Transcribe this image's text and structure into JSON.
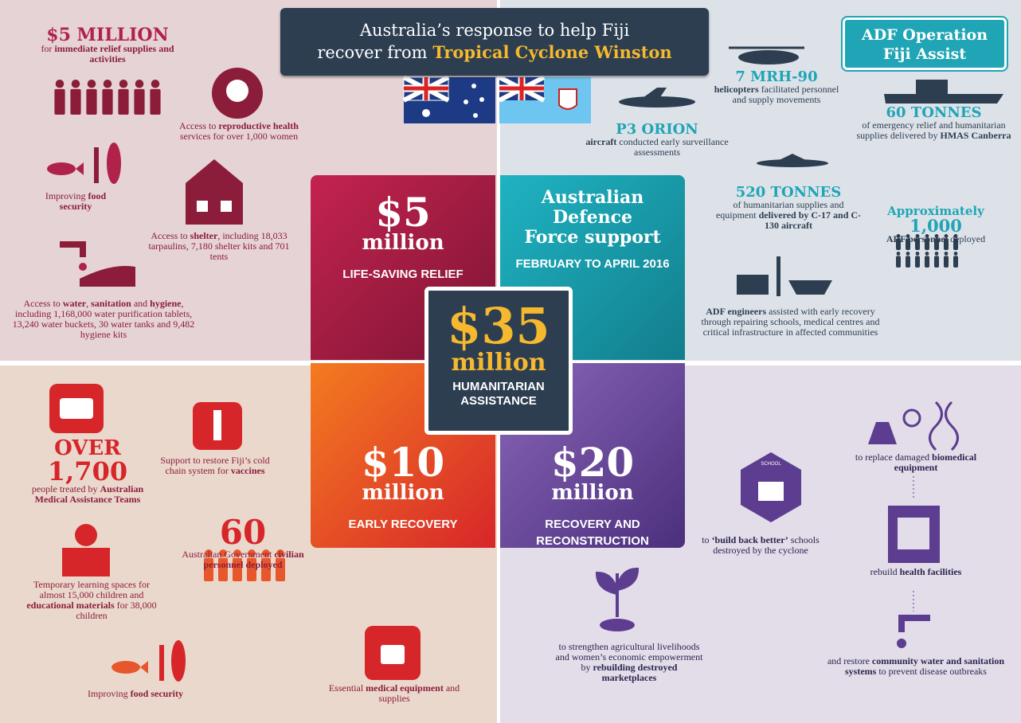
{
  "title": {
    "line1": "Australia’s response to help Fiji",
    "line2": "recover from",
    "highlight": "Tropical Cyclone Winston"
  },
  "badge": [
    "ADF Operation",
    "Fiji Assist"
  ],
  "tiles": [
    {
      "amount": "$5",
      "unit": "million",
      "label": [
        "LIFE-SAVING RELIEF"
      ]
    },
    {
      "heading": [
        "Australian",
        "Defence",
        "Force support"
      ],
      "label": [
        "FEBRUARY TO APRIL 2016"
      ]
    },
    {
      "amount": "$10",
      "unit": "million",
      "label": [
        "EARLY RECOVERY"
      ]
    },
    {
      "amount": "$20",
      "unit": "million",
      "label": [
        "RECOVERY AND",
        "RECONSTRUCTION"
      ]
    }
  ],
  "center": {
    "amount": "$35",
    "unit": "million",
    "label": [
      "HUMANITARIAN",
      "ASSISTANCE"
    ]
  },
  "items": [
    {
      "headline": "$5 MILLION",
      "parts": [
        {
          "text": "for "
        },
        {
          "text": "immediate relief supplies and activities",
          "bold": true
        }
      ]
    },
    {
      "parts": [
        {
          "text": "Access to "
        },
        {
          "text": "reproductive health",
          "bold": true
        },
        {
          "text": " services for over 1,000 women"
        }
      ]
    },
    {
      "parts": [
        {
          "text": "Improving "
        },
        {
          "text": "food security",
          "bold": true
        }
      ]
    },
    {
      "parts": [
        {
          "text": "Access to "
        },
        {
          "text": "shelter",
          "bold": true
        },
        {
          "text": ", including 18,033 tarpaulins, 7,180 shelter kits and 701 tents"
        }
      ]
    },
    {
      "parts": [
        {
          "text": "Access to "
        },
        {
          "text": "water",
          "bold": true
        },
        {
          "text": ", "
        },
        {
          "text": "sanitation",
          "bold": true
        },
        {
          "text": " and "
        },
        {
          "text": "hygiene",
          "bold": true
        },
        {
          "text": ", including 1,168,000 water purification tablets, 13,240 water buckets, 30 water tanks and 9,482 hygiene kits"
        }
      ]
    },
    {
      "headline": "7 MRH-90",
      "parts": [
        {
          "text": "helicopters",
          "bold": true
        },
        {
          "text": " facilitated personnel and supply movements"
        }
      ]
    },
    {
      "headline": "P3 ORION",
      "parts": [
        {
          "text": "aircraft",
          "bold": true
        },
        {
          "text": " conducted early surveillance assessments"
        }
      ]
    },
    {
      "headline": "60 TONNES",
      "parts": [
        {
          "text": "of emergency relief and humanitarian supplies delivered by "
        },
        {
          "text": "HMAS Canberra",
          "bold": true
        }
      ]
    },
    {
      "headline": "520 TONNES",
      "parts": [
        {
          "text": "of humanitarian supplies and equipment "
        },
        {
          "text": "delivered by C-17 and C-130 aircraft",
          "bold": true
        }
      ]
    },
    {
      "headline": "Approximately",
      "headline2": "1,000",
      "parts": [
        {
          "text": "ADF personnel",
          "bold": true
        },
        {
          "text": " deployed"
        }
      ]
    },
    {
      "parts": [
        {
          "text": "ADF engineers",
          "bold": true
        },
        {
          "text": " assisted with early recovery through repairing schools, medical centres and critical infrastructure in affected communities"
        }
      ]
    },
    {
      "headline": "OVER",
      "headline2": "1,700",
      "parts": [
        {
          "text": "people treated by "
        },
        {
          "text": "Australian Medical Assistance Teams",
          "bold": true
        }
      ]
    },
    {
      "parts": [
        {
          "text": "Support to restore Fiji’s cold chain system for "
        },
        {
          "text": "vaccines",
          "bold": true
        }
      ]
    },
    {
      "headline": "60",
      "parts": [
        {
          "text": "Australian Government "
        },
        {
          "text": "civilian personnel deployed",
          "bold": true
        }
      ]
    },
    {
      "parts": [
        {
          "text": "Temporary learning spaces for almost 15,000 children and "
        },
        {
          "text": "educational materials",
          "bold": true
        },
        {
          "text": " for 38,000 children"
        }
      ]
    },
    {
      "parts": [
        {
          "text": "Improving "
        },
        {
          "text": "food security",
          "bold": true
        }
      ]
    },
    {
      "parts": [
        {
          "text": "Essential "
        },
        {
          "text": "medical equipment",
          "bold": true
        },
        {
          "text": " and supplies"
        }
      ]
    },
    {
      "icon_label": "SCHOOL",
      "parts": [
        {
          "text": "to "
        },
        {
          "text": "‘build back better’",
          "bold": true
        },
        {
          "text": " schools destroyed by the cyclone"
        }
      ]
    },
    {
      "parts": [
        {
          "text": "to replace damaged "
        },
        {
          "text": "biomedical equipment",
          "bold": true
        }
      ]
    },
    {
      "parts": [
        {
          "text": "rebuild "
        },
        {
          "text": "health facilities",
          "bold": true
        }
      ]
    },
    {
      "parts": [
        {
          "text": "and restore "
        },
        {
          "text": "community water and sanitation systems",
          "bold": true
        },
        {
          "text": " to prevent disease outbreaks"
        }
      ]
    },
    {
      "parts": [
        {
          "text": "to strengthen agricultural livelihoods and women’s economic empowerment by "
        },
        {
          "text": "rebuilding destroyed marketplaces",
          "bold": true
        }
      ]
    }
  ]
}
